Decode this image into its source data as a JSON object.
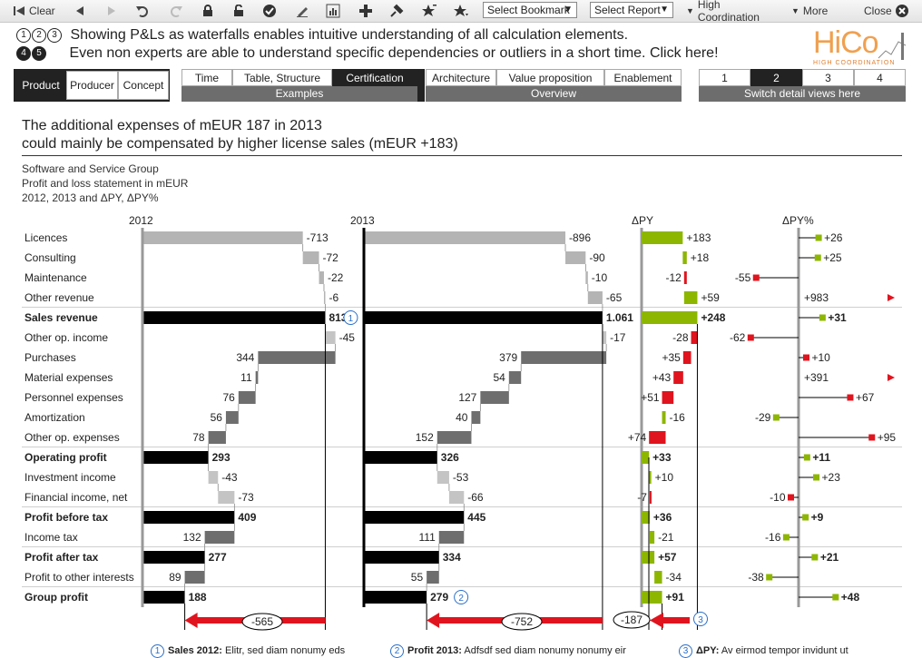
{
  "toolbar": {
    "clear_label": "Clear",
    "bookmark_select": "Select Bookmark",
    "report_select": "Select Report",
    "high_coordination_label": "High Coordination",
    "more_label": "More",
    "close_label": "Close"
  },
  "info": {
    "line1": "Showing P&Ls as waterfalls enables intuitive understanding of all calculation elements.",
    "line2": "Even non experts are able to understand specific dependencies or outliers in a short time. Click here!",
    "badges": [
      "1",
      "2",
      "3",
      "4",
      "5"
    ]
  },
  "logo": {
    "text": "HiCo",
    "sub": "HIGH COORDINATION"
  },
  "nav": {
    "left_tabs": [
      "Product",
      "Producer",
      "Concept"
    ],
    "examples_tabs": [
      "Time",
      "Table, Structure",
      "Certification"
    ],
    "examples_label": "Examples",
    "overview_tabs": [
      "Architecture",
      "Value proposition",
      "Enablement"
    ],
    "overview_label": "Overview",
    "detail_tabs": [
      "1",
      "2",
      "3",
      "4"
    ],
    "detail_label": "Switch detail views here"
  },
  "headline": {
    "line1": "The additional expenses of mEUR 187 in 2013",
    "line2": "could mainly be compensated by higher license sales (mEUR +183)"
  },
  "subtitle": {
    "line1": "Software and Service Group",
    "line2": "Profit and loss statement in mEUR",
    "line3": "2012, 2013 and ΔPY, ΔPY%"
  },
  "columns": {
    "c2012": "2012",
    "c2013": "2013",
    "dpy": "ΔPY",
    "dpyp": "ΔPY%"
  },
  "colors": {
    "green": "#8db600",
    "red": "#e0141e",
    "black": "#000000",
    "grey_rev": "#b4b4b4",
    "grey_exp": "#6e6e6e",
    "grey_light": "#c4c4c4",
    "blue": "#2a6fc9"
  },
  "rows": [
    {
      "label": "Licences",
      "bold": false,
      "v12": "-713",
      "v13": "-896",
      "dpy": "+183",
      "dpyp": "+26"
    },
    {
      "label": "Consulting",
      "bold": false,
      "v12": "-72",
      "v13": "-90",
      "dpy": "+18",
      "dpyp": "+25"
    },
    {
      "label": "Maintenance",
      "bold": false,
      "v12": "-22",
      "v13": "-10",
      "dpy": "-12",
      "dpyp": "-55"
    },
    {
      "label": "Other revenue",
      "bold": false,
      "v12": "-6",
      "v13": "-65",
      "dpy": "+59",
      "dpyp": "+983"
    },
    {
      "label": "Sales revenue",
      "bold": true,
      "v12": "813",
      "v13": "1.061",
      "dpy": "+248",
      "dpyp": "+31"
    },
    {
      "label": "Other op. income",
      "bold": false,
      "v12": "-45",
      "v13": "-17",
      "dpy": "-28",
      "dpyp": "-62"
    },
    {
      "label": "Purchases",
      "bold": false,
      "v12": "344",
      "v13": "379",
      "dpy": "+35",
      "dpyp": "+10"
    },
    {
      "label": "Material expenses",
      "bold": false,
      "v12": "11",
      "v13": "54",
      "dpy": "+43",
      "dpyp": "+391"
    },
    {
      "label": "Personnel expenses",
      "bold": false,
      "v12": "76",
      "v13": "127",
      "dpy": "+51",
      "dpyp": "+67"
    },
    {
      "label": "Amortization",
      "bold": false,
      "v12": "56",
      "v13": "40",
      "dpy": "-16",
      "dpyp": "-29"
    },
    {
      "label": "Other op. expenses",
      "bold": false,
      "v12": "78",
      "v13": "152",
      "dpy": "+74",
      "dpyp": "+95"
    },
    {
      "label": "Operating profit",
      "bold": true,
      "v12": "293",
      "v13": "326",
      "dpy": "+33",
      "dpyp": "+11"
    },
    {
      "label": "Investment income",
      "bold": false,
      "v12": "-43",
      "v13": "-53",
      "dpy": "+10",
      "dpyp": "+23"
    },
    {
      "label": "Financial income, net",
      "bold": false,
      "v12": "-73",
      "v13": "-66",
      "dpy": "-7",
      "dpyp": "-10"
    },
    {
      "label": "Profit before tax",
      "bold": true,
      "v12": "409",
      "v13": "445",
      "dpy": "+36",
      "dpyp": "+9"
    },
    {
      "label": "Income tax",
      "bold": false,
      "v12": "132",
      "v13": "111",
      "dpy": "-21",
      "dpyp": "-16"
    },
    {
      "label": "Profit after tax",
      "bold": true,
      "v12": "277",
      "v13": "334",
      "dpy": "+57",
      "dpyp": "+21"
    },
    {
      "label": "Profit to other interests",
      "bold": false,
      "v12": "89",
      "v13": "55",
      "dpy": "-34",
      "dpyp": "-38"
    },
    {
      "label": "Group profit",
      "bold": true,
      "v12": "188",
      "v13": "279",
      "dpy": "+91",
      "dpyp": "+48"
    }
  ],
  "gaps": {
    "g2012": "-565",
    "g2013": "-752",
    "gdpy": "-187"
  },
  "markers": {
    "m1": "1",
    "m2": "2",
    "m3": "3"
  },
  "footnotes": [
    {
      "num": "1",
      "title": "Sales 2012:",
      "text": "Elitr, sed diam nonumy eds"
    },
    {
      "num": "2",
      "title": "Profit 2013:",
      "text": "Adfsdf sed diam nonumy nonumy eir"
    },
    {
      "num": "3",
      "title": "ΔPY:",
      "text": "Av eirmod tempor invidunt ut"
    }
  ]
}
